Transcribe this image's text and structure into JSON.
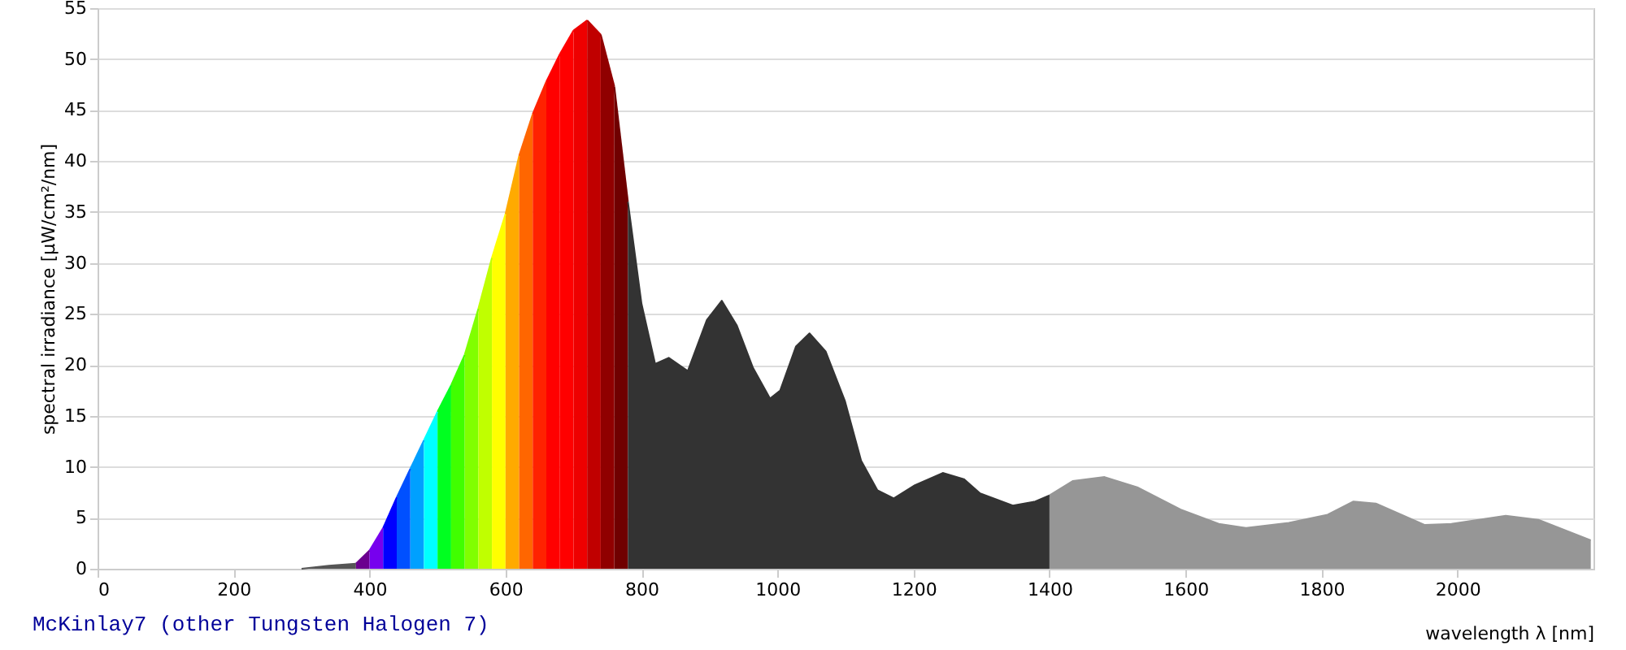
{
  "chart_data": {
    "type": "area",
    "xlabel": "wavelength λ [nm]",
    "ylabel": "spectral irradiance [µW/cm²/nm]",
    "annotations": [
      "McKinlay7 (other Tungsten Halogen 7)"
    ],
    "xlim": [
      0,
      2200
    ],
    "xticks": [
      0,
      200,
      400,
      600,
      800,
      1000,
      1200,
      1400,
      1600,
      1800,
      2000
    ],
    "ylim": [
      0,
      55
    ],
    "yticks": [
      0,
      5,
      10,
      15,
      20,
      25,
      30,
      35,
      40,
      45,
      50,
      55
    ],
    "grid": "y",
    "legend": false,
    "series": [
      {
        "color": "#555555",
        "x": [
          300,
          340,
          380
        ],
        "values": [
          0,
          0.3,
          0.5
        ]
      },
      {
        "color": "#6b008f",
        "x": [
          380,
          400
        ],
        "values": [
          0.5,
          1.8
        ]
      },
      {
        "color": "#7700ee",
        "x": [
          400,
          420
        ],
        "values": [
          1.8,
          4.0
        ]
      },
      {
        "color": "#0000ff",
        "x": [
          420,
          440
        ],
        "values": [
          4.0,
          7.0
        ]
      },
      {
        "color": "#0050ff",
        "x": [
          440,
          460
        ],
        "values": [
          7.0,
          9.8
        ]
      },
      {
        "color": "#00a0ff",
        "x": [
          460,
          480
        ],
        "values": [
          9.8,
          12.6
        ]
      },
      {
        "color": "#00ffff",
        "x": [
          480,
          500
        ],
        "values": [
          12.6,
          15.4
        ]
      },
      {
        "color": "#00ff20",
        "x": [
          500,
          520
        ],
        "values": [
          15.4,
          18.0
        ]
      },
      {
        "color": "#40ff00",
        "x": [
          520,
          540
        ],
        "values": [
          18.0,
          21.0
        ]
      },
      {
        "color": "#80ff00",
        "x": [
          540,
          560
        ],
        "values": [
          21.0,
          25.5
        ]
      },
      {
        "color": "#c0ff00",
        "x": [
          560,
          580
        ],
        "values": [
          25.5,
          30.5
        ]
      },
      {
        "color": "#ffff00",
        "x": [
          580,
          600
        ],
        "values": [
          30.5,
          34.8
        ]
      },
      {
        "color": "#ffaa00",
        "x": [
          600,
          620
        ],
        "values": [
          34.8,
          40.5
        ]
      },
      {
        "color": "#ff6600",
        "x": [
          620,
          640
        ],
        "values": [
          40.5,
          44.6
        ]
      },
      {
        "color": "#ff2200",
        "x": [
          640,
          660
        ],
        "values": [
          44.6,
          47.8
        ]
      },
      {
        "color": "#ff0000",
        "x": [
          660,
          680
        ],
        "values": [
          47.8,
          50.5
        ]
      },
      {
        "color": "#ff0000",
        "x": [
          680,
          700
        ],
        "values": [
          50.5,
          52.8
        ]
      },
      {
        "color": "#ee0000",
        "x": [
          700,
          720
        ],
        "values": [
          52.8,
          53.8
        ]
      },
      {
        "color": "#c00000",
        "x": [
          720,
          740
        ],
        "values": [
          53.8,
          52.4
        ]
      },
      {
        "color": "#900000",
        "x": [
          740,
          760
        ],
        "values": [
          52.4,
          47.3
        ]
      },
      {
        "color": "#700000",
        "x": [
          760,
          780
        ],
        "values": [
          47.3,
          36
        ]
      },
      {
        "color": "#333333",
        "x": [
          780,
          800,
          820,
          840,
          868,
          896,
          918,
          940,
          964,
          989,
          1004,
          1027,
          1047,
          1071,
          1099,
          1123,
          1147,
          1171,
          1202,
          1243,
          1274,
          1298,
          1346,
          1379,
          1400
        ],
        "values": [
          36,
          26.0,
          20.1,
          20.7,
          19.4,
          24.4,
          26.3,
          23.9,
          19.7,
          16.7,
          17.5,
          21.8,
          23.1,
          21.3,
          16.5,
          10.6,
          7.7,
          6.9,
          8.2,
          9.4,
          8.8,
          7.4,
          6.2,
          6.6,
          7.2
        ]
      },
      {
        "color": "#969696",
        "x": [
          1400,
          1434,
          1481,
          1529,
          1593,
          1649,
          1689,
          1752,
          1809,
          1847,
          1880,
          1952,
          1991,
          2071,
          2119,
          2196
        ],
        "values": [
          7.2,
          8.6,
          9.0,
          8.0,
          5.8,
          4.4,
          4.0,
          4.5,
          5.3,
          6.6,
          6.4,
          4.3,
          4.4,
          5.2,
          4.8,
          2.8
        ]
      }
    ]
  }
}
